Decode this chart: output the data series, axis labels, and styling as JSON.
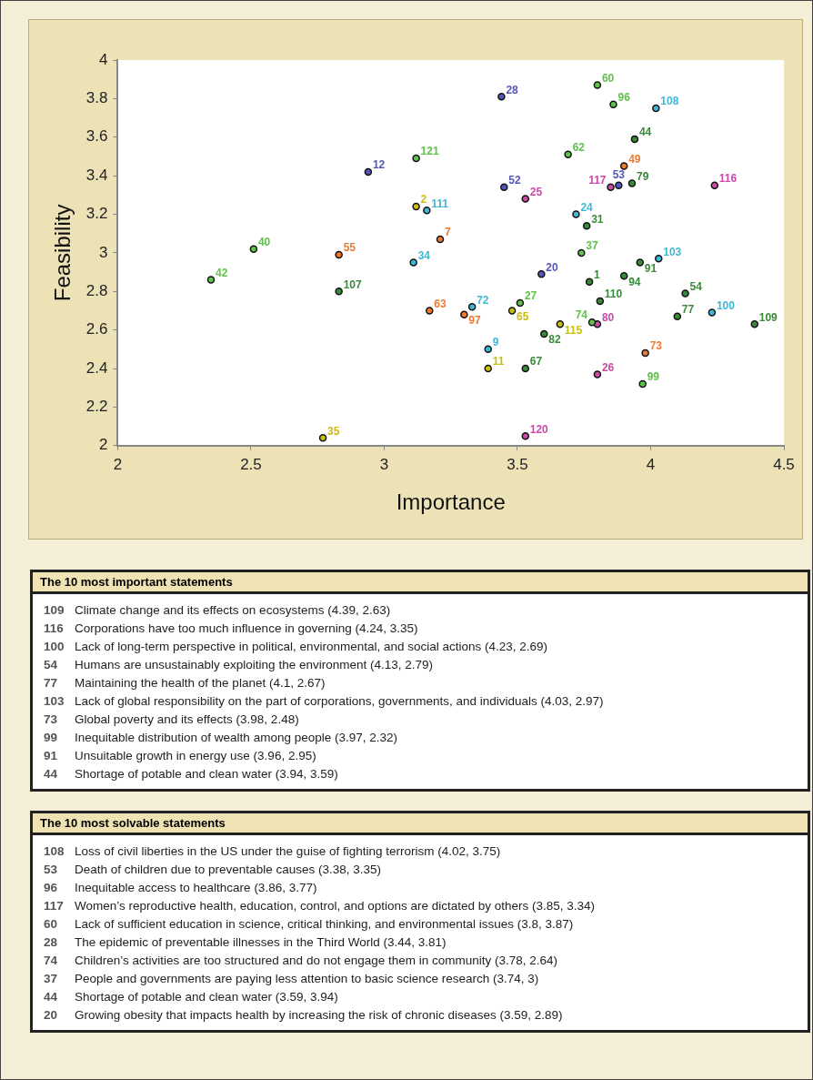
{
  "chart_data": {
    "type": "scatter",
    "xlabel": "Importance",
    "ylabel": "Feasibility",
    "xlim": [
      2,
      4.5
    ],
    "xticks": [
      2,
      2.5,
      3,
      3.5,
      4,
      4.5
    ],
    "ylim": [
      2,
      4
    ],
    "yticks": [
      2,
      2.2,
      2.4,
      2.6,
      2.8,
      3,
      3.2,
      3.4,
      3.6,
      3.8,
      4
    ],
    "grid": false,
    "legend": false,
    "marker": "circle",
    "series": [
      {
        "color": "#3a8a3a",
        "x": [
          2.83,
          3.94,
          3.93,
          3.76,
          3.96,
          3.77,
          3.9,
          4.13,
          3.81,
          4.1,
          4.39,
          3.6,
          3.53
        ],
        "values": [
          2.8,
          3.59,
          3.36,
          3.14,
          2.95,
          2.85,
          2.88,
          2.79,
          2.75,
          2.67,
          2.63,
          2.58,
          2.4
        ]
      },
      {
        "color": "#5fc24a",
        "x": [
          2.35,
          2.51,
          3.12,
          3.8,
          3.86,
          3.69,
          3.74,
          3.51,
          3.78,
          3.97
        ],
        "values": [
          2.86,
          3.02,
          3.49,
          3.87,
          3.77,
          3.51,
          3.0,
          2.74,
          2.64,
          2.32
        ]
      },
      {
        "color": "#3fb8d8",
        "x": [
          3.16,
          3.11,
          4.02,
          3.72,
          4.03,
          4.23,
          3.33,
          3.39
        ],
        "values": [
          3.22,
          2.95,
          3.75,
          3.2,
          2.97,
          2.69,
          2.72,
          2.5
        ]
      },
      {
        "color": "#ec7a34",
        "x": [
          2.83,
          3.21,
          3.17,
          3.9,
          3.3,
          3.98
        ],
        "values": [
          2.99,
          3.07,
          2.7,
          3.45,
          2.68,
          2.48
        ]
      },
      {
        "color": "#c9bd10",
        "x": [
          2.77,
          3.12,
          3.48,
          3.66,
          3.39
        ],
        "values": [
          2.04,
          3.24,
          2.7,
          2.63,
          2.4
        ]
      },
      {
        "color": "#5656b8",
        "x": [
          2.94,
          3.44,
          3.88,
          3.45,
          3.59
        ],
        "values": [
          3.42,
          3.81,
          3.35,
          3.34,
          2.89
        ]
      },
      {
        "color": "#cc4aa8",
        "x": [
          3.85,
          4.24,
          3.53,
          3.8,
          3.8,
          3.53
        ],
        "values": [
          3.34,
          3.35,
          3.28,
          2.63,
          2.37,
          2.05
        ]
      }
    ],
    "annotations": [
      {
        "text": "107",
        "x": 2.83,
        "y": 2.8
      },
      {
        "text": "44",
        "x": 3.94,
        "y": 3.59
      },
      {
        "text": "79",
        "x": 3.93,
        "y": 3.36
      },
      {
        "text": "31",
        "x": 3.76,
        "y": 3.14
      },
      {
        "text": "91",
        "x": 3.96,
        "y": 2.95
      },
      {
        "text": "1",
        "x": 3.77,
        "y": 2.85
      },
      {
        "text": "94",
        "x": 3.9,
        "y": 2.88
      },
      {
        "text": "54",
        "x": 4.13,
        "y": 2.79
      },
      {
        "text": "110",
        "x": 3.81,
        "y": 2.75
      },
      {
        "text": "77",
        "x": 4.1,
        "y": 2.67
      },
      {
        "text": "109",
        "x": 4.39,
        "y": 2.63
      },
      {
        "text": "82",
        "x": 3.6,
        "y": 2.58
      },
      {
        "text": "67",
        "x": 3.53,
        "y": 2.4
      },
      {
        "text": "42",
        "x": 2.35,
        "y": 2.86
      },
      {
        "text": "40",
        "x": 2.51,
        "y": 3.02
      },
      {
        "text": "121",
        "x": 3.12,
        "y": 3.49
      },
      {
        "text": "60",
        "x": 3.8,
        "y": 3.87
      },
      {
        "text": "96",
        "x": 3.86,
        "y": 3.77
      },
      {
        "text": "62",
        "x": 3.69,
        "y": 3.51
      },
      {
        "text": "37",
        "x": 3.74,
        "y": 3.0
      },
      {
        "text": "27",
        "x": 3.51,
        "y": 2.74
      },
      {
        "text": "74",
        "x": 3.78,
        "y": 2.64
      },
      {
        "text": "99",
        "x": 3.97,
        "y": 2.32
      },
      {
        "text": "111",
        "x": 3.16,
        "y": 3.22
      },
      {
        "text": "34",
        "x": 3.11,
        "y": 2.95
      },
      {
        "text": "108",
        "x": 4.02,
        "y": 3.75
      },
      {
        "text": "24",
        "x": 3.72,
        "y": 3.2
      },
      {
        "text": "103",
        "x": 4.03,
        "y": 2.97
      },
      {
        "text": "100",
        "x": 4.23,
        "y": 2.69
      },
      {
        "text": "72",
        "x": 3.33,
        "y": 2.72
      },
      {
        "text": "9",
        "x": 3.39,
        "y": 2.5
      },
      {
        "text": "55",
        "x": 2.83,
        "y": 2.99
      },
      {
        "text": "7",
        "x": 3.21,
        "y": 3.07
      },
      {
        "text": "63",
        "x": 3.17,
        "y": 2.7
      },
      {
        "text": "49",
        "x": 3.9,
        "y": 3.45
      },
      {
        "text": "97",
        "x": 3.3,
        "y": 2.68
      },
      {
        "text": "73",
        "x": 3.98,
        "y": 2.48
      },
      {
        "text": "35",
        "x": 2.77,
        "y": 2.04
      },
      {
        "text": "2",
        "x": 3.12,
        "y": 3.24
      },
      {
        "text": "65",
        "x": 3.48,
        "y": 2.7
      },
      {
        "text": "115",
        "x": 3.66,
        "y": 2.63
      },
      {
        "text": "11",
        "x": 3.39,
        "y": 2.4
      },
      {
        "text": "12",
        "x": 2.94,
        "y": 3.42
      },
      {
        "text": "28",
        "x": 3.44,
        "y": 3.81
      },
      {
        "text": "53",
        "x": 3.88,
        "y": 3.35
      },
      {
        "text": "52",
        "x": 3.45,
        "y": 3.34
      },
      {
        "text": "20",
        "x": 3.59,
        "y": 2.89
      },
      {
        "text": "117",
        "x": 3.85,
        "y": 3.34
      },
      {
        "text": "116",
        "x": 4.24,
        "y": 3.35
      },
      {
        "text": "25",
        "x": 3.53,
        "y": 3.28
      },
      {
        "text": "80",
        "x": 3.8,
        "y": 2.63
      },
      {
        "text": "26",
        "x": 3.8,
        "y": 2.37
      },
      {
        "text": "120",
        "x": 3.53,
        "y": 2.05
      },
      "The 10 most important statements",
      "109 Climate change and its effects on ecosystems (4.39, 2.63)",
      "116 Corporations have too much influence in governing (4.24, 3.35)",
      "100 Lack of long-term perspective in political, environmental, and social actions (4.23, 2.69)",
      "54 Humans are unsustainably exploiting the environment (4.13, 2.79)",
      "77 Maintaining the health of the planet (4.1, 2.67)",
      "103 Lack of global responsibility on the part of corporations, governments, and individuals (4.03, 2.97)",
      "73 Global poverty and its effects (3.98, 2.48)",
      "99 Inequitable distribution of wealth among people (3.97, 2.32)",
      "91 Unsuitable growth in energy use (3.96, 2.95)",
      "44 Shortage of potable and clean water (3.94, 3.59)",
      "The 10 most solvable statements",
      "108 Loss of civil liberties in the US under the guise of fighting terrorism (4.02, 3.75)",
      "53 Death of children due to preventable causes (3.38, 3.35)",
      "96 Inequitable access to healthcare (3.86, 3.77)",
      "117 Women’s reproductive health, education, control, and options are dictated by others (3.85, 3.34)",
      "60 Lack of sufficient education in science, critical thinking, and environmental issues (3.8, 3.87)",
      "28 The epidemic of preventable illnesses in the Third World (3.44, 3.81)",
      "74 Children’s activities are too structured and do not engage them in community (3.78, 2.64)",
      "37 People and governments are paying less attention to basic science research (3.74, 3)",
      "44 Shortage of potable and clean water (3.59, 3.94)",
      "20 Growing obesity that impacts health by increasing the risk of chronic diseases (3.59, 2.89)"
    ]
  }
}
